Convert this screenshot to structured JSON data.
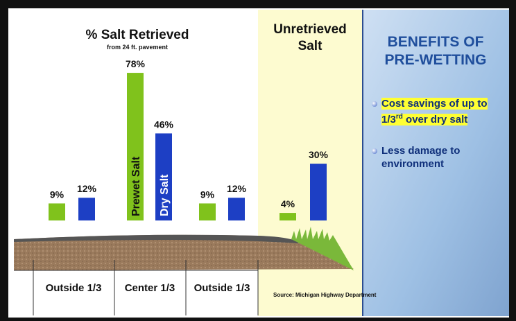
{
  "chart_data": {
    "type": "bar",
    "title": "% Salt Retrieved",
    "subtitle": "from 24 ft. pavement",
    "unretrieved_title": "Unretrieved Salt",
    "categories": [
      "Outside 1/3",
      "Center 1/3",
      "Outside 1/3",
      null
    ],
    "series": [
      {
        "name": "Prewet Salt",
        "color": "#80c21c",
        "values": [
          9,
          78,
          9,
          4
        ],
        "value_labels": [
          "9%",
          "78%",
          "9%",
          "4%"
        ]
      },
      {
        "name": "Dry Salt",
        "color": "#1d3fc4",
        "values": [
          12,
          46,
          12,
          30
        ],
        "value_labels": [
          "12%",
          "46%",
          "12%",
          "30%"
        ]
      }
    ],
    "source": "Source: Michigan Highway Department"
  },
  "panel": {
    "title": [
      "BENEFITS OF",
      "PRE-WETTING"
    ],
    "bullets": [
      {
        "text": "Cost savings of up to 1/3",
        "superscript": "rd",
        "text_after": " over dry salt"
      },
      {
        "text": "Less damage to environment"
      }
    ]
  }
}
